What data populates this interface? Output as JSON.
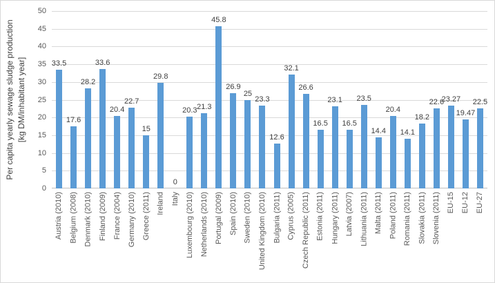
{
  "chart_data": {
    "type": "bar",
    "title": "",
    "xlabel": "",
    "ylabel": "Per capita yearly sewage sludge production [kg DM/inhabitant year]",
    "ylabel_lines": [
      "Per capita yearly sewage sludge production",
      "[kg DM/inhabitant year]"
    ],
    "ylim": [
      0,
      50
    ],
    "yticks": [
      0,
      5,
      10,
      15,
      20,
      25,
      30,
      35,
      40,
      45,
      50
    ],
    "grid": true,
    "legend_position": "none",
    "bar_color": "#5B9BD5",
    "gridline_color": "#D9D9D9",
    "axis_line_color": "#BFBFBF",
    "categories": [
      "Austria (2010)",
      "Belgium (2008)",
      "Denmark (2010)",
      "Finland (2009)",
      "France (2004)",
      "Germany (2010)",
      "Greece (2011)",
      "Ireland",
      "Italy",
      "Luxembourg (2010)",
      "Netherlands (2010)",
      "Portugal (2009)",
      "Spain (2010)",
      "Sweden (2010)",
      "United Kingdom (2010)",
      "Bulgaria (2011)",
      "Cyprus (2005)",
      "Czech Republic (2011)",
      "Estonia (2011)",
      "Hungary (2011)",
      "Latvia (2007)",
      "Lithuania (2011)",
      "Malta (2011)",
      "Poland (2011)",
      "Romania (2011)",
      "Slovakia (2011)",
      "Slovenia (2011)",
      "EU-15",
      "EU-12",
      "EU-27"
    ],
    "values": [
      33.5,
      17.6,
      28.2,
      33.6,
      20.4,
      22.7,
      15,
      29.8,
      0,
      20.3,
      21.3,
      45.8,
      26.9,
      25,
      23.3,
      12.6,
      32.1,
      26.6,
      16.5,
      23.1,
      16.5,
      23.5,
      14.4,
      20.4,
      14.1,
      18.2,
      22.6,
      23.27,
      19.47,
      22.5
    ],
    "value_labels": [
      "33.5",
      "17.6",
      "28.2",
      "33.6",
      "20.4",
      "22.7",
      "15",
      "29.8",
      "0",
      "20.3",
      "21.3",
      "45.8",
      "26.9",
      "25",
      "23.3",
      "12.6",
      "32.1",
      "26.6",
      "16.5",
      "23.1",
      "16.5",
      "23.5",
      "14.4",
      "20.4",
      "14.1",
      "18.2",
      "22.6",
      "23.27",
      "19.47",
      "22.5"
    ]
  }
}
